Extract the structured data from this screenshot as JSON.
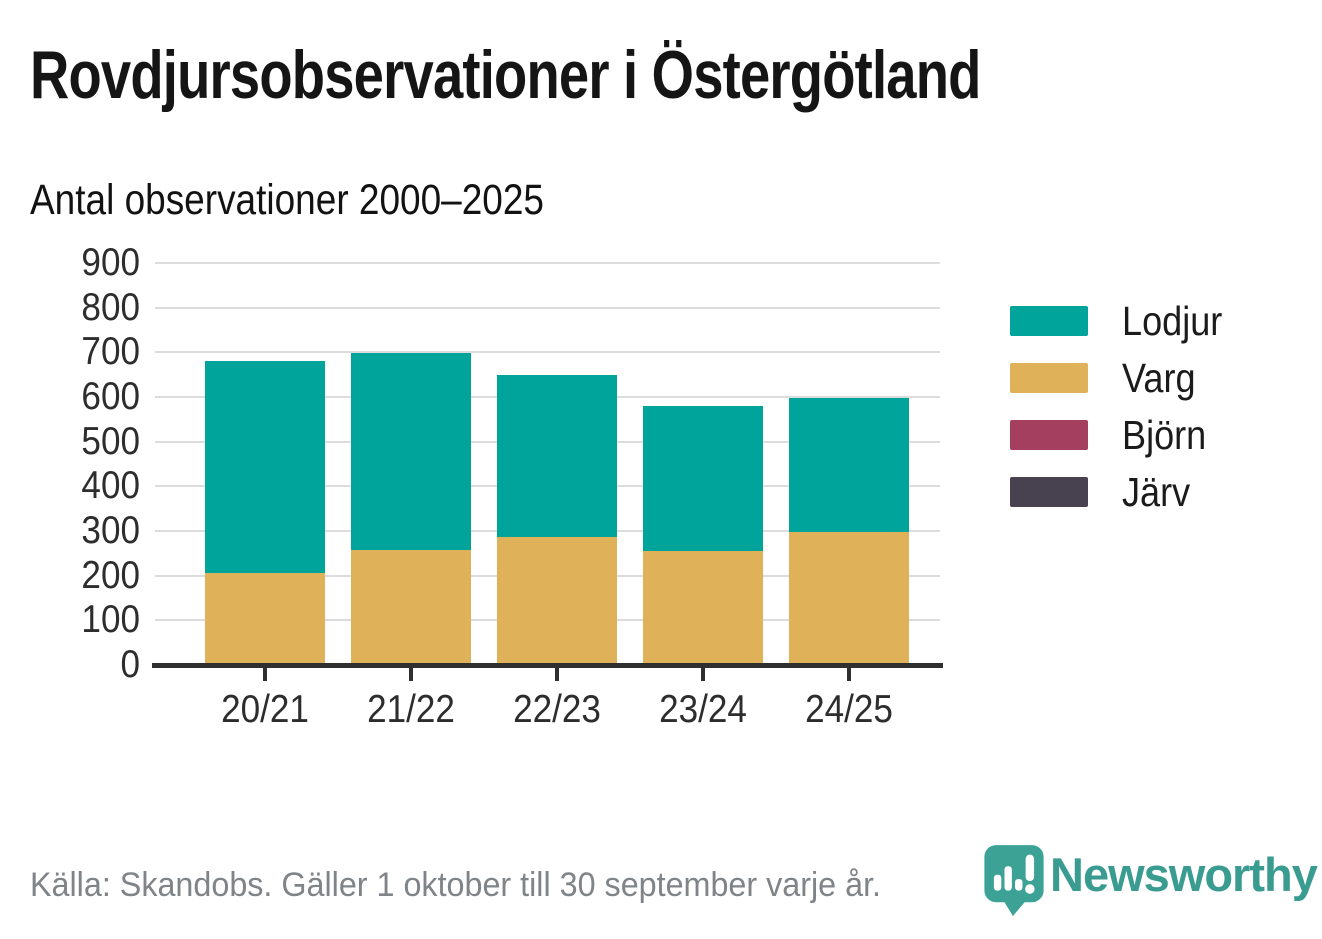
{
  "title": "Rovdjursobservationer i Östergötland",
  "subtitle": "Antal observationer 2000–2025",
  "footer": {
    "source": "Källa: Skandobs. Gäller 1 oktober till 30 september varje år."
  },
  "brand": {
    "name": "Newsworthy",
    "icon": "newsworthy-speech-bubble-chart-icon",
    "icon_color": "#3da296",
    "text_color": "#3a9b91"
  },
  "colors": {
    "axis": "#2f2f2f",
    "grid": "#dcdcdc",
    "tick_text": "#2d2d2d",
    "muted_text": "#7f8488"
  },
  "chart_data": {
    "type": "bar",
    "stacked": true,
    "title": "Rovdjursobservationer i Östergötland",
    "subtitle": "Antal observationer 2000–2025",
    "categories": [
      "20/21",
      "21/22",
      "22/23",
      "23/24",
      "24/25"
    ],
    "series": [
      {
        "name": "Lodjur",
        "color": "#00a49a",
        "values": [
          476,
          441,
          364,
          325,
          300
        ]
      },
      {
        "name": "Varg",
        "color": "#dfb259",
        "values": [
          205,
          257,
          286,
          255,
          297
        ]
      },
      {
        "name": "Björn",
        "color": "#a43f60",
        "values": [
          0,
          0,
          0,
          0,
          0
        ]
      },
      {
        "name": "Järv",
        "color": "#484250",
        "values": [
          0,
          0,
          0,
          0,
          0
        ]
      }
    ],
    "stack_order": [
      "Varg",
      "Björn",
      "Järv",
      "Lodjur"
    ],
    "bar_totals": [
      681,
      698,
      650,
      580,
      597
    ],
    "xlabel": "",
    "ylabel": "",
    "ylim": [
      0,
      900
    ],
    "yticks": [
      0,
      100,
      200,
      300,
      400,
      500,
      600,
      700,
      800,
      900
    ],
    "grid": true,
    "legend_position": "right",
    "legend_order": [
      "Lodjur",
      "Varg",
      "Björn",
      "Järv"
    ]
  }
}
